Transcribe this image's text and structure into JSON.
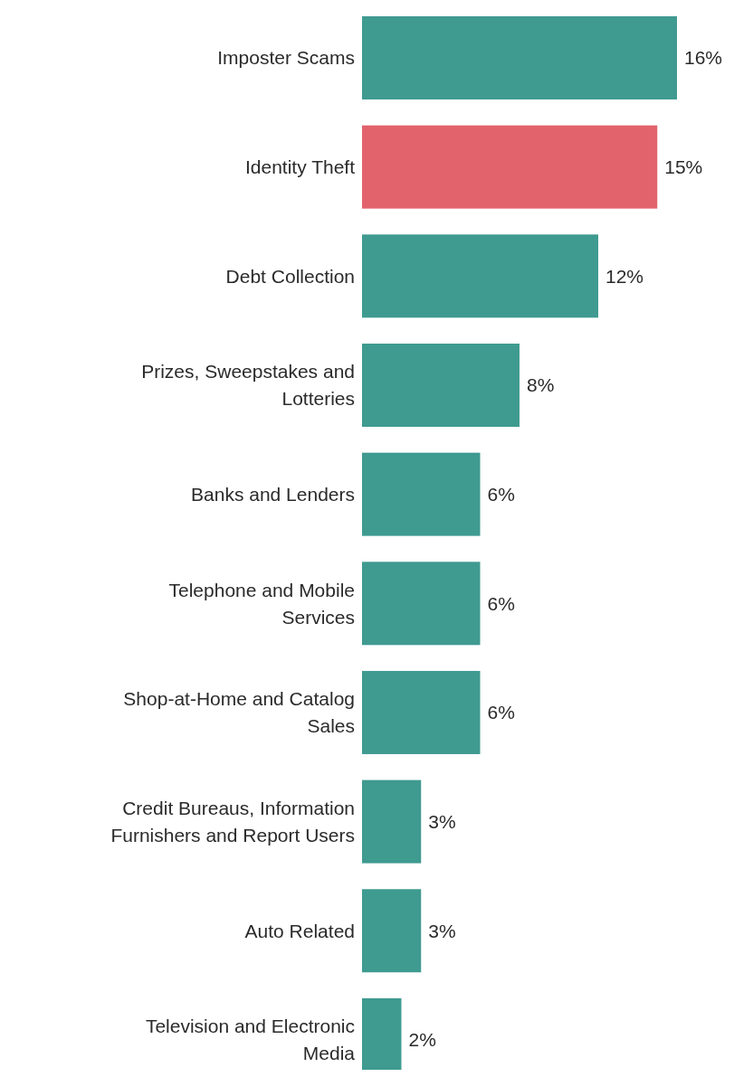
{
  "chart_data": {
    "type": "bar",
    "orientation": "horizontal",
    "value_labels": [
      "16%",
      "15%",
      "12%",
      "8%",
      "6%",
      "6%",
      "6%",
      "3%",
      "3%",
      "2%"
    ],
    "categories": [
      "Imposter Scams",
      "Identity Theft",
      "Debt Collection",
      "Prizes, Sweepstakes and Lotteries",
      "Banks and Lenders",
      "Telephone and Mobile Services",
      "Shop-at-Home and Catalog Sales",
      "Credit Bureaus, Information Furnishers and Report Users",
      "Auto Related",
      "Television and Electronic Media"
    ],
    "values": [
      16,
      15,
      12,
      8,
      6,
      6,
      6,
      3,
      3,
      2
    ],
    "colors": [
      "#3f9a90",
      "#e2636c",
      "#3f9a90",
      "#3f9a90",
      "#3f9a90",
      "#3f9a90",
      "#3f9a90",
      "#3f9a90",
      "#3f9a90",
      "#3f9a90"
    ]
  }
}
